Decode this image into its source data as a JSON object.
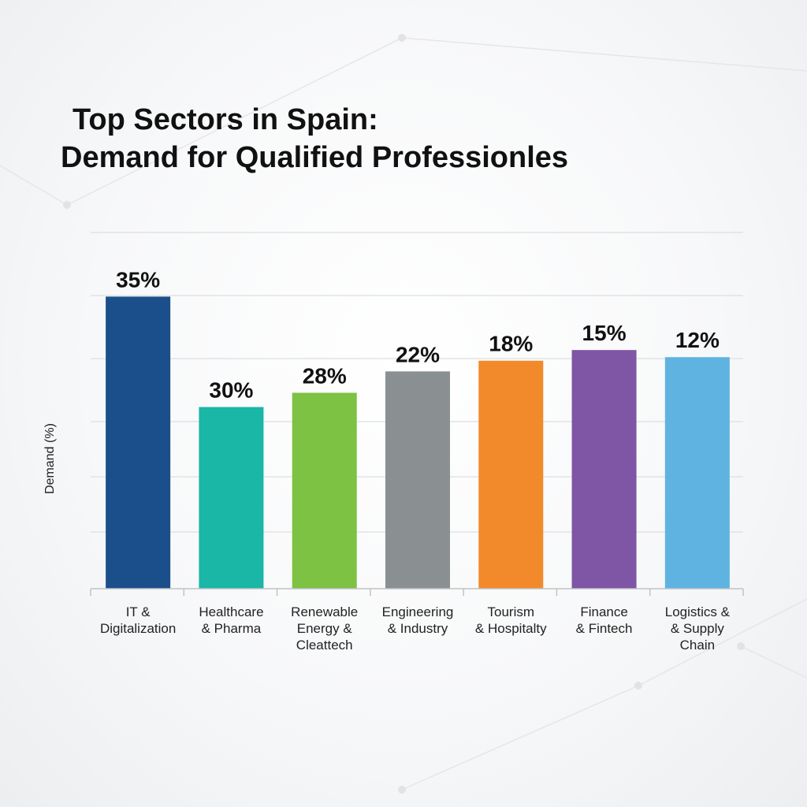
{
  "title_lines": [
    "Top Sectors in Spain:",
    "Demand for Qualified Professionles"
  ],
  "chart_data": {
    "type": "bar",
    "title": "Top Sectors in Spain: Demand for Qualified Professionles",
    "ylabel": "Demand (%)",
    "xlabel": "",
    "categories": [
      [
        "IT &",
        "Digitalization"
      ],
      [
        "Healthcare",
        "& Pharma"
      ],
      [
        "Renewable",
        "Energy &",
        "Cleattech"
      ],
      [
        "Engineering",
        "& Industry"
      ],
      [
        "Tourism",
        "& Hospitalty"
      ],
      [
        "Finance",
        "& Fintech"
      ],
      [
        "Logistics &",
        "& Supply",
        "Chain"
      ]
    ],
    "values": [
      35,
      30,
      28,
      22,
      18,
      15,
      12
    ],
    "value_labels": [
      "35%",
      "30%",
      "28%",
      "22%",
      "18%",
      "15%",
      "12%"
    ],
    "bar_visual_heights": [
      0.82,
      0.51,
      0.55,
      0.61,
      0.64,
      0.67,
      0.65
    ],
    "colors": [
      "#1a4f8b",
      "#1ab6a6",
      "#7dc242",
      "#8a9091",
      "#f28a2c",
      "#7f55a5",
      "#5eb3e1"
    ],
    "grid": true,
    "legend": "none"
  }
}
